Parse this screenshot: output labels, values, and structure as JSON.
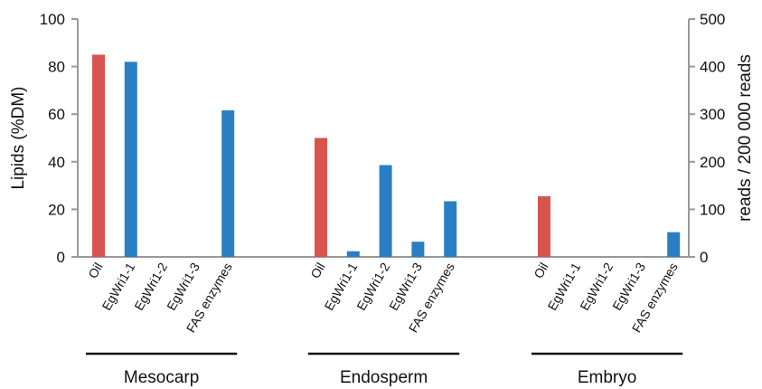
{
  "chart_data": {
    "type": "bar",
    "ylabel_left": "Lipids (%DM)",
    "ylabel_right": "reads / 200 000 reads",
    "ylim_left": [
      0,
      100
    ],
    "ylim_right": [
      0,
      500
    ],
    "yticks_left": [
      "0",
      "20",
      "40",
      "60",
      "80",
      "100"
    ],
    "yticks_right": [
      "0",
      "100",
      "200",
      "300",
      "400",
      "500"
    ],
    "grid": false,
    "colors": {
      "oil": "#d9534f",
      "reads": "#2a7fc4"
    },
    "groups": [
      {
        "name": "Mesocarp",
        "categories": [
          "Oil",
          "EgWri1-1",
          "EgWri1-2",
          "EgWri1-3",
          "FAS enzymes"
        ],
        "oil_percent_dm": 85,
        "reads": [
          null,
          410,
          0,
          0,
          308
        ]
      },
      {
        "name": "Endosperm",
        "categories": [
          "Oil",
          "EgWri1-1",
          "EgWri1-2",
          "EgWri1-3",
          "FAS enzymes"
        ],
        "oil_percent_dm": 50,
        "reads": [
          null,
          12,
          193,
          32,
          117
        ]
      },
      {
        "name": "Embryo",
        "categories": [
          "Oil",
          "EgWri1-1",
          "EgWri1-2",
          "EgWri1-3",
          "FAS enzymes"
        ],
        "oil_percent_dm": 25.5,
        "reads": [
          null,
          0,
          0,
          0,
          52
        ]
      }
    ]
  }
}
